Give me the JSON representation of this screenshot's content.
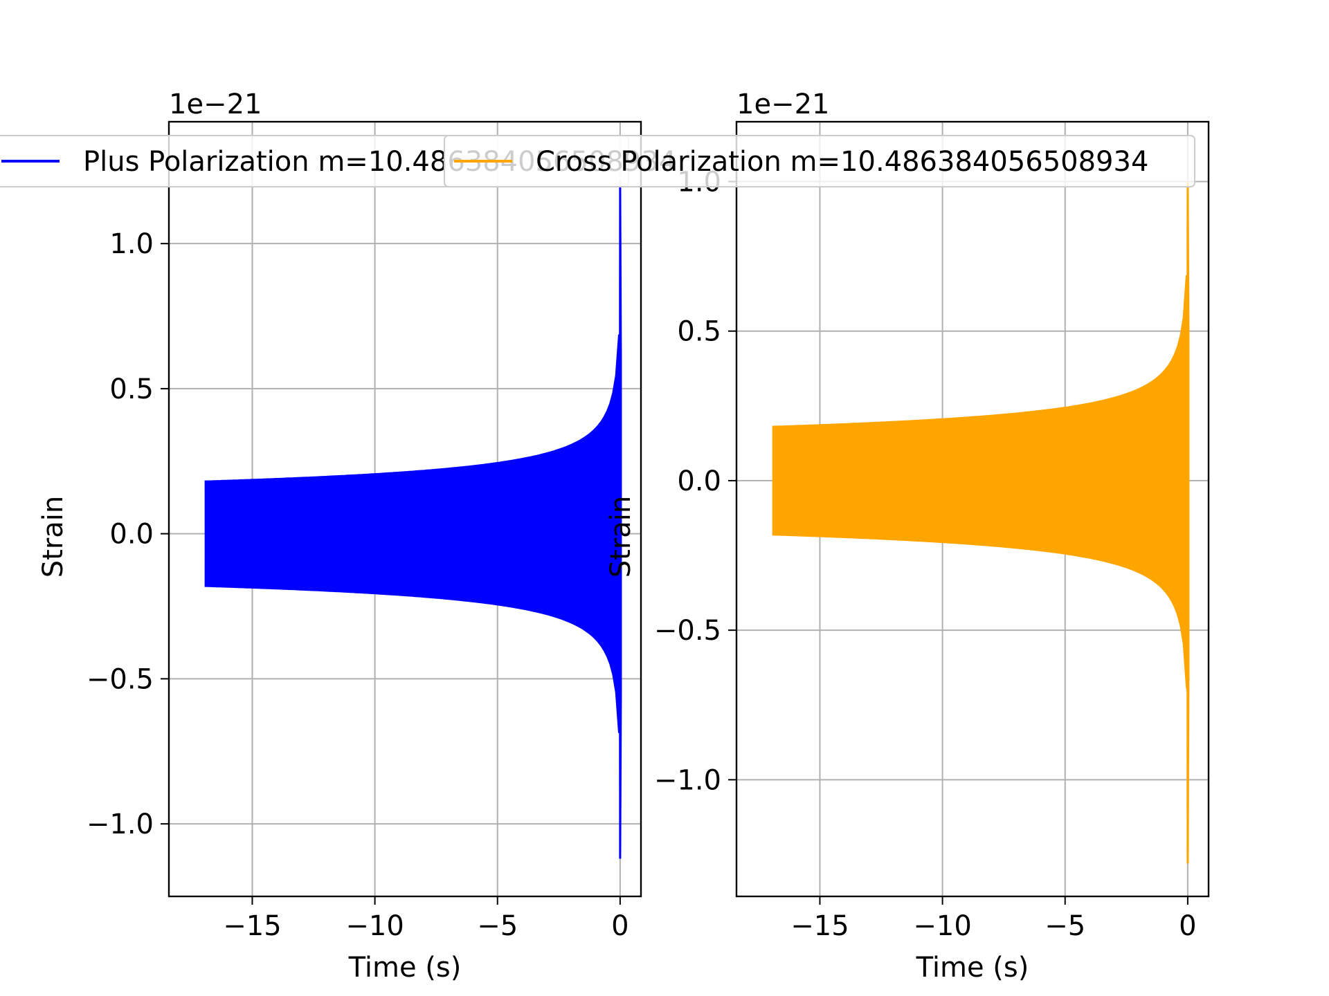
{
  "colors": {
    "plus": "#0000ff",
    "cross": "#ffa500",
    "grid": "#b0b0b0"
  },
  "chart_data": [
    {
      "type": "line",
      "series": [
        {
          "name": "Plus Polarization m=10.486384056508934",
          "color": "#0000ff",
          "t_start": -16.9,
          "t_end": 0.0,
          "amp_start": 0.18,
          "peak_max": 1.22,
          "peak_min": -1.12
        }
      ],
      "xlabel": "Time (s)",
      "ylabel": "Strain",
      "offset_text": "1e−21",
      "xlim": [
        -18.4,
        0.85
      ],
      "ylim": [
        -1.25,
        1.42
      ],
      "xticks": [
        -15,
        -10,
        -5,
        0
      ],
      "xtick_labels": [
        "−15",
        "−10",
        "−5",
        "0"
      ],
      "yticks": [
        -1.0,
        -0.5,
        0.0,
        0.5,
        1.0
      ],
      "ytick_labels": [
        "−1.0",
        "−0.5",
        "0.0",
        "0.5",
        "1.0"
      ],
      "grid": true,
      "legend_position": "top"
    },
    {
      "type": "line",
      "series": [
        {
          "name": "Cross Polarization m=10.486384056508934",
          "color": "#ffa500",
          "t_start": -16.9,
          "t_end": 0.0,
          "amp_start": 0.18,
          "peak_max": 1.0,
          "peak_min": -1.28
        }
      ],
      "xlabel": "Time (s)",
      "ylabel": "Strain",
      "offset_text": "1e−21",
      "xlim": [
        -18.4,
        0.85
      ],
      "ylim": [
        -1.39,
        1.2
      ],
      "xticks": [
        -15,
        -10,
        -5,
        0
      ],
      "xtick_labels": [
        "−15",
        "−10",
        "−5",
        "0"
      ],
      "yticks": [
        -1.0,
        -0.5,
        0.0,
        0.5,
        1.0
      ],
      "ytick_labels": [
        "−1.0",
        "−0.5",
        "0.0",
        "0.5",
        "1.0"
      ],
      "grid": true,
      "legend_position": "top"
    }
  ]
}
